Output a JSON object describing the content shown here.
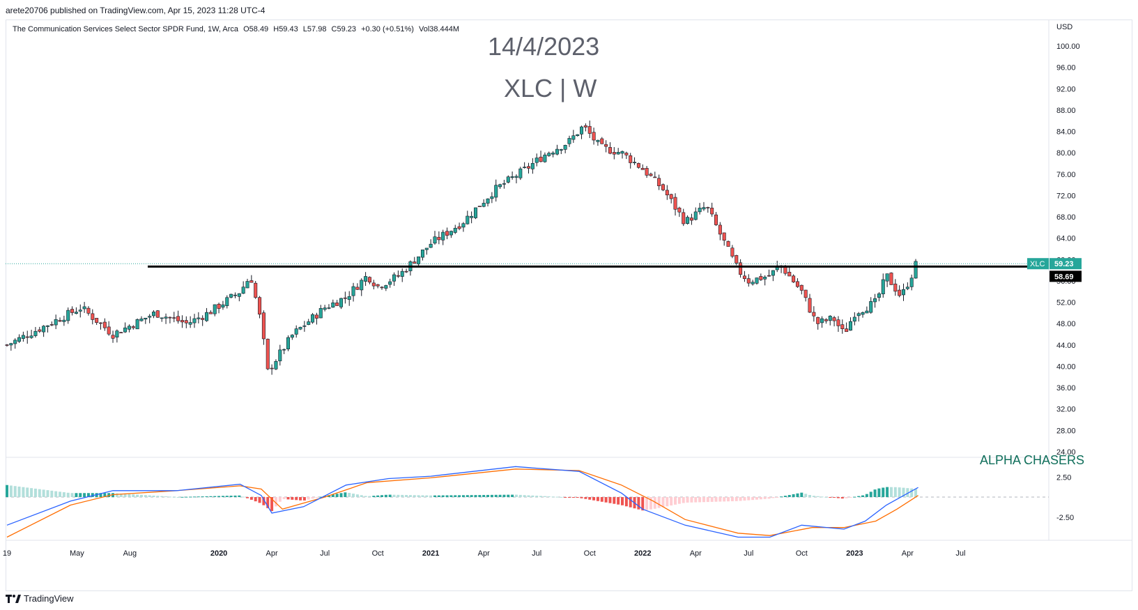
{
  "publish_line": "arete20706 published on TradingView.com, Apr 15, 2023 11:28 UTC-4",
  "legend": {
    "name": "The Communication Services Select Sector SPDR Fund, 1W, Arca",
    "open": "O58.49",
    "high": "H59.43",
    "low": "L57.98",
    "close": "C59.23",
    "change": "+0.30 (+0.51%)",
    "volume": "Vol38.444M"
  },
  "watermark": {
    "date": "14/4/2023",
    "symbol": "XLC | W"
  },
  "brand_text": "ALPHA CHASERS",
  "footer": {
    "brand": "TradingView"
  },
  "colors": {
    "up": "#26a69a",
    "down": "#ef5350",
    "macd": "#2962ff",
    "signal": "#ff6d00",
    "hist_up": "#26a69a",
    "hist_up_light": "#b2dfdb",
    "hist_down": "#ef5350",
    "hist_down_light": "#ffcdd2"
  },
  "chart_data": {
    "type": "candlestick",
    "currency": "USD",
    "price_axis": {
      "ticks": [
        "100.00",
        "96.00",
        "92.00",
        "88.00",
        "84.00",
        "80.00",
        "76.00",
        "72.00",
        "68.00",
        "64.00",
        "60.00",
        "56.00",
        "52.00",
        "48.00",
        "44.00",
        "40.00",
        "36.00",
        "32.00",
        "28.00",
        "24.00"
      ],
      "ylim": [
        24,
        100
      ]
    },
    "last_price_label": {
      "symbol": "XLC",
      "value": "59.23"
    },
    "line_label": {
      "value": "58.69"
    },
    "support_line": {
      "price": 58.69,
      "from": "2019-08",
      "to": "2023-04"
    },
    "x_axis_labels": [
      {
        "text": "19",
        "bold": false
      },
      {
        "text": "May",
        "bold": false
      },
      {
        "text": "Aug",
        "bold": false
      },
      {
        "text": "2020",
        "bold": true
      },
      {
        "text": "Apr",
        "bold": false
      },
      {
        "text": "Jul",
        "bold": false
      },
      {
        "text": "Oct",
        "bold": false
      },
      {
        "text": "2021",
        "bold": true
      },
      {
        "text": "Apr",
        "bold": false
      },
      {
        "text": "Jul",
        "bold": false
      },
      {
        "text": "Oct",
        "bold": false
      },
      {
        "text": "2022",
        "bold": true
      },
      {
        "text": "Apr",
        "bold": false
      },
      {
        "text": "Jul",
        "bold": false
      },
      {
        "text": "Oct",
        "bold": false
      },
      {
        "text": "2023",
        "bold": true
      },
      {
        "text": "Apr",
        "bold": false
      },
      {
        "text": "Jul",
        "bold": false
      }
    ],
    "price_path": [
      [
        2019.0,
        44
      ],
      [
        2019.15,
        47
      ],
      [
        2019.35,
        51
      ],
      [
        2019.5,
        46
      ],
      [
        2019.7,
        50
      ],
      [
        2019.85,
        48
      ],
      [
        2019.95,
        50
      ],
      [
        2020.1,
        54
      ],
      [
        2020.15,
        57
      ],
      [
        2020.2,
        48
      ],
      [
        2020.23,
        39
      ],
      [
        2020.35,
        46
      ],
      [
        2020.5,
        51
      ],
      [
        2020.6,
        53
      ],
      [
        2020.7,
        57
      ],
      [
        2020.75,
        55
      ],
      [
        2020.85,
        57
      ],
      [
        2021.0,
        63
      ],
      [
        2021.15,
        67
      ],
      [
        2021.3,
        73
      ],
      [
        2021.45,
        77
      ],
      [
        2021.55,
        80
      ],
      [
        2021.65,
        82
      ],
      [
        2021.72,
        85
      ],
      [
        2021.8,
        81
      ],
      [
        2021.9,
        80
      ],
      [
        2022.0,
        77
      ],
      [
        2022.1,
        73
      ],
      [
        2022.2,
        67
      ],
      [
        2022.3,
        70
      ],
      [
        2022.4,
        62
      ],
      [
        2022.45,
        58
      ],
      [
        2022.5,
        56
      ],
      [
        2022.6,
        57
      ],
      [
        2022.65,
        59
      ],
      [
        2022.75,
        54
      ],
      [
        2022.82,
        48
      ],
      [
        2022.9,
        49
      ],
      [
        2022.95,
        46
      ],
      [
        2023.0,
        50
      ],
      [
        2023.1,
        52
      ],
      [
        2023.15,
        57
      ],
      [
        2023.22,
        53
      ],
      [
        2023.28,
        58
      ],
      [
        2023.29,
        59.23
      ]
    ],
    "macd_axis": {
      "ticks": [
        "2.50",
        "-2.50"
      ]
    },
    "macd_path": [
      [
        2019.0,
        -3.5
      ],
      [
        2019.3,
        -0.5
      ],
      [
        2019.5,
        0.8
      ],
      [
        2019.8,
        0.8
      ],
      [
        2020.1,
        1.6
      ],
      [
        2020.2,
        0.2
      ],
      [
        2020.25,
        -2.0
      ],
      [
        2020.4,
        -1.2
      ],
      [
        2020.6,
        1.5
      ],
      [
        2020.8,
        2.3
      ],
      [
        2021.0,
        2.6
      ],
      [
        2021.4,
        3.8
      ],
      [
        2021.7,
        3.2
      ],
      [
        2021.9,
        0.5
      ],
      [
        2022.0,
        -1.5
      ],
      [
        2022.2,
        -3.5
      ],
      [
        2022.45,
        -5.0
      ],
      [
        2022.6,
        -5.0
      ],
      [
        2022.75,
        -3.5
      ],
      [
        2022.95,
        -4.0
      ],
      [
        2023.05,
        -3.0
      ],
      [
        2023.15,
        -1.0
      ],
      [
        2023.3,
        1.2
      ]
    ],
    "signal_path": [
      [
        2019.0,
        -5.0
      ],
      [
        2019.3,
        -1.0
      ],
      [
        2019.5,
        0.3
      ],
      [
        2019.8,
        0.8
      ],
      [
        2020.1,
        1.4
      ],
      [
        2020.2,
        1.0
      ],
      [
        2020.3,
        -1.5
      ],
      [
        2020.5,
        0.0
      ],
      [
        2020.7,
        1.8
      ],
      [
        2021.0,
        2.4
      ],
      [
        2021.4,
        3.5
      ],
      [
        2021.7,
        3.3
      ],
      [
        2021.9,
        1.5
      ],
      [
        2022.05,
        -0.5
      ],
      [
        2022.2,
        -2.8
      ],
      [
        2022.45,
        -4.5
      ],
      [
        2022.6,
        -4.8
      ],
      [
        2022.8,
        -3.8
      ],
      [
        2022.95,
        -3.8
      ],
      [
        2023.1,
        -3.0
      ],
      [
        2023.2,
        -1.5
      ],
      [
        2023.3,
        0.2
      ]
    ]
  }
}
